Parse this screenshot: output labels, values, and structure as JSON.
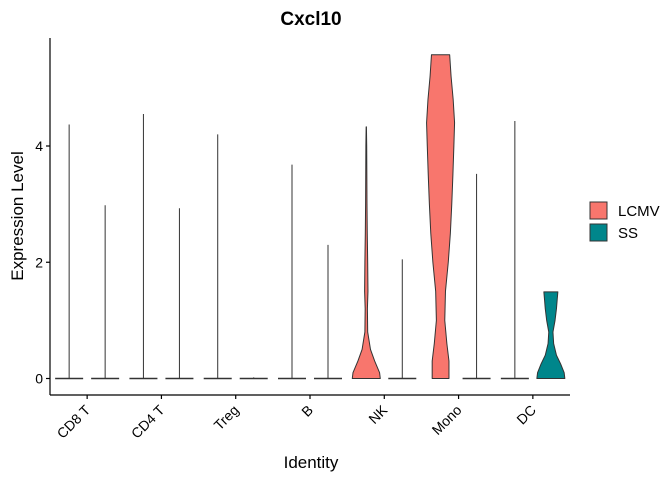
{
  "chart_data": {
    "type": "violin",
    "title": "Cxcl10",
    "xlabel": "Identity",
    "ylabel": "Expression Level",
    "categories": [
      "CD8 T",
      "CD4 T",
      "Treg",
      "B",
      "NK",
      "Mono",
      "DC"
    ],
    "y_ticks": [
      0,
      2,
      4
    ],
    "ylim": [
      -0.28,
      5.85
    ],
    "legend_position": "right",
    "grid": false,
    "series": [
      {
        "name": "LCMV",
        "color": "#F8766D",
        "violins": [
          {
            "category": "CD8 T",
            "max": 4.37,
            "profile": []
          },
          {
            "category": "CD4 T",
            "max": 4.55,
            "profile": []
          },
          {
            "category": "Treg",
            "max": 4.2,
            "profile": []
          },
          {
            "category": "B",
            "max": 3.68,
            "profile": []
          },
          {
            "category": "NK",
            "max": 4.33,
            "profile": [
              [
                0,
                1.0
              ],
              [
                0.1,
                0.95
              ],
              [
                0.3,
                0.6
              ],
              [
                0.5,
                0.3
              ],
              [
                0.8,
                0.1
              ],
              [
                1.2,
                0.08
              ],
              [
                1.5,
                0.12
              ],
              [
                2.0,
                0.1
              ],
              [
                2.5,
                0.07
              ],
              [
                3.0,
                0.05
              ],
              [
                3.5,
                0.04
              ],
              [
                4.0,
                0.03
              ],
              [
                4.33,
                0.01
              ]
            ]
          },
          {
            "category": "Mono",
            "max": 5.57,
            "profile": [
              [
                0,
                0.6
              ],
              [
                0.3,
                0.6
              ],
              [
                0.6,
                0.45
              ],
              [
                1.0,
                0.3
              ],
              [
                1.5,
                0.35
              ],
              [
                2.0,
                0.55
              ],
              [
                2.5,
                0.7
              ],
              [
                3.0,
                0.8
              ],
              [
                3.5,
                0.88
              ],
              [
                4.0,
                0.95
              ],
              [
                4.4,
                1.0
              ],
              [
                4.8,
                0.9
              ],
              [
                5.2,
                0.75
              ],
              [
                5.57,
                0.65
              ]
            ]
          },
          {
            "category": "DC",
            "max": 4.43,
            "profile": []
          }
        ]
      },
      {
        "name": "SS",
        "color": "#00868B",
        "violins": [
          {
            "category": "CD8 T",
            "max": 2.98,
            "profile": []
          },
          {
            "category": "CD4 T",
            "max": 2.93,
            "profile": []
          },
          {
            "category": "Treg",
            "max": 0.02,
            "profile": []
          },
          {
            "category": "B",
            "max": 2.3,
            "profile": []
          },
          {
            "category": "NK",
            "max": 2.05,
            "profile": []
          },
          {
            "category": "Mono",
            "max": 3.52,
            "profile": []
          },
          {
            "category": "DC",
            "max": 1.49,
            "profile": [
              [
                0,
                1.0
              ],
              [
                0.1,
                0.95
              ],
              [
                0.25,
                0.7
              ],
              [
                0.4,
                0.4
              ],
              [
                0.6,
                0.2
              ],
              [
                0.8,
                0.15
              ],
              [
                1.0,
                0.3
              ],
              [
                1.2,
                0.4
              ],
              [
                1.35,
                0.45
              ],
              [
                1.49,
                0.5
              ]
            ]
          }
        ]
      }
    ]
  }
}
